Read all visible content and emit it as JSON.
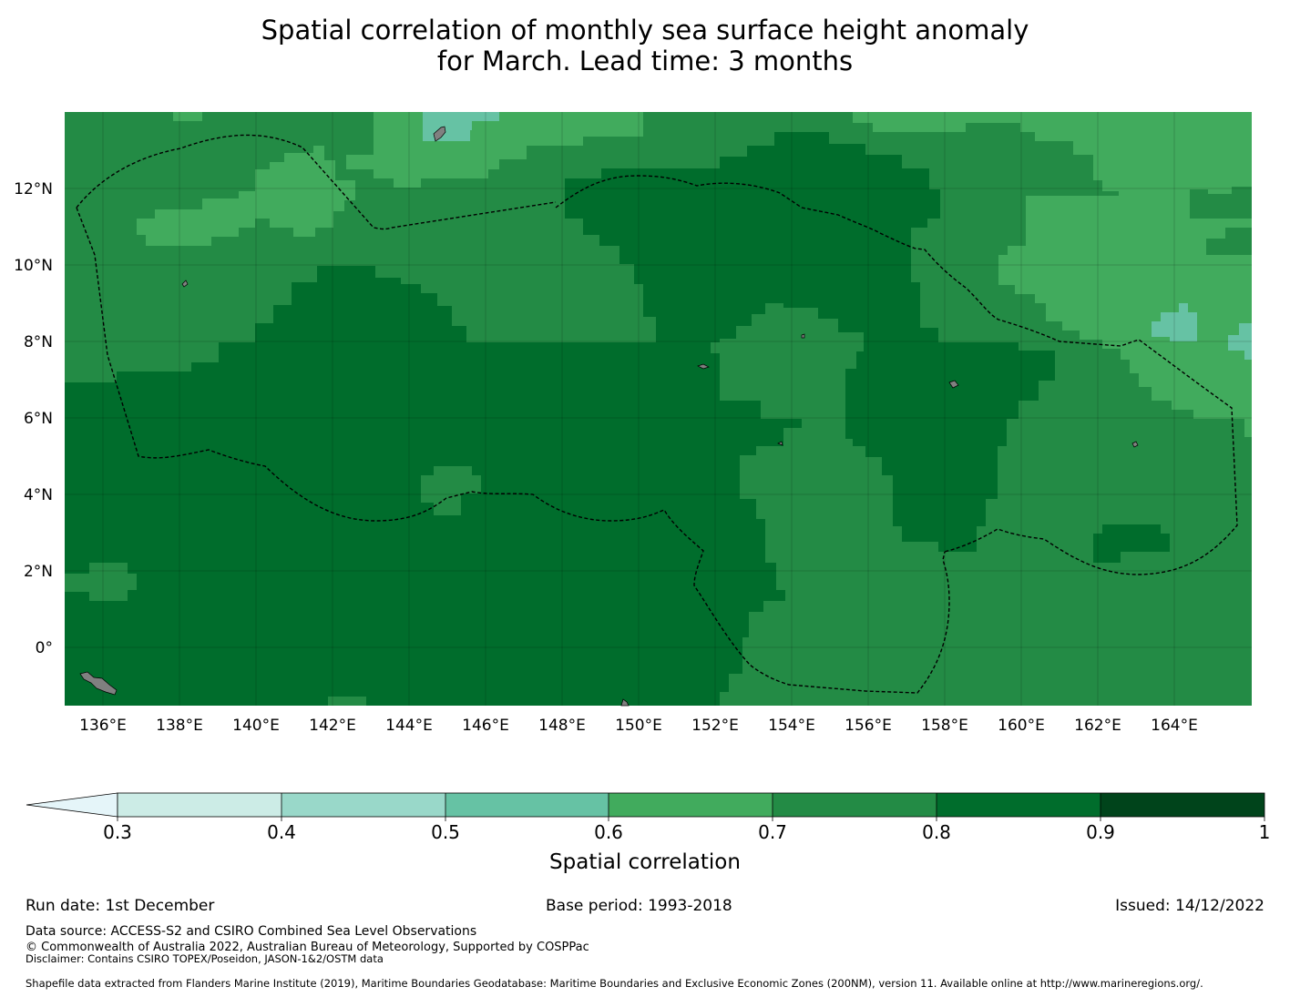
{
  "title_line1": "Spatial correlation of monthly sea surface height anomaly",
  "title_line2": "for March. Lead time: 3 months",
  "map": {
    "lon_ticks": [
      "136°E",
      "138°E",
      "140°E",
      "142°E",
      "144°E",
      "146°E",
      "148°E",
      "150°E",
      "152°E",
      "154°E",
      "156°E",
      "158°E",
      "160°E",
      "162°E",
      "164°E"
    ],
    "lat_ticks": [
      "12°N",
      "10°N",
      "8°N",
      "6°N",
      "4°N",
      "2°N",
      "0°"
    ],
    "colors": {
      "zone_0_7_0_8": "#238b45",
      "zone_0_8_0_9": "#006d2c",
      "zone_0_6_0_7": "#41ab5d",
      "zone_0_5_0_6": "#66c2a4",
      "land": "#808080",
      "eez_boundary": "#000000"
    }
  },
  "colorbar": {
    "tick_labels": [
      "0.3",
      "0.4",
      "0.5",
      "0.6",
      "0.7",
      "0.8",
      "0.9",
      "1"
    ],
    "colors": [
      "#e5f5f9",
      "#ccece6",
      "#99d8c9",
      "#66c2a4",
      "#41ab5d",
      "#238b45",
      "#006d2c",
      "#00441b"
    ],
    "label": "Spatial correlation"
  },
  "footer": {
    "run_date": "Run date: 1st December",
    "base_period": "Base period: 1993-2018",
    "issued": "Issued: 14/12/2022",
    "data_source": "Data source: ACCESS-S2 and CSIRO Combined Sea Level Observations",
    "copyright": "© Commonwealth of Australia 2022, Australian Bureau of Meteorology, Supported by COSPPac",
    "disclaimer": "Disclaimer: Contains CSIRO TOPEX/Poseidon, JASON-1&2/OSTM data",
    "shapefile": "Shapefile data extracted from Flanders Marine Institute (2019), Maritime Boundaries Geodatabase: Maritime Boundaries and Exclusive Economic Zones (200NM), version 11. Available online at http://www.marineregions.org/."
  }
}
